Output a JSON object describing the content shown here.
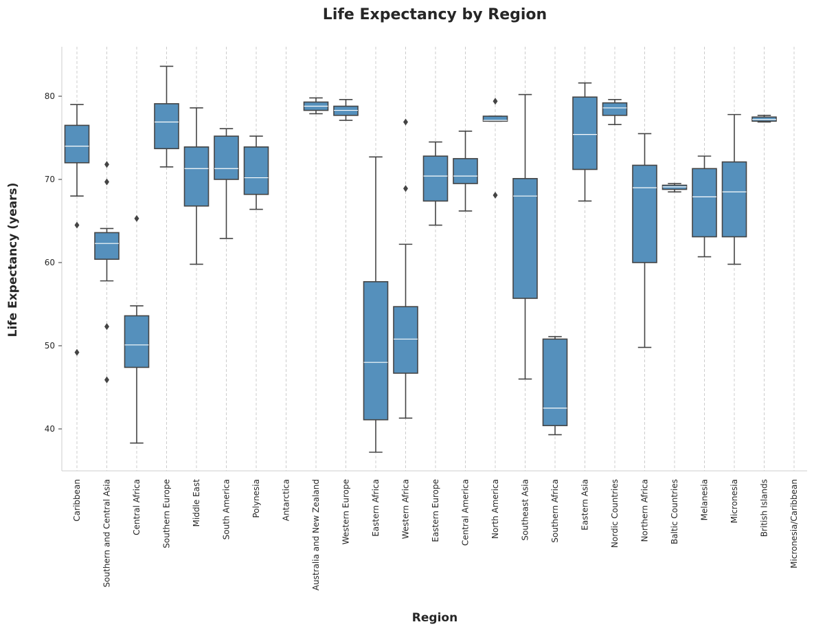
{
  "chart_data": {
    "type": "box",
    "title": "Life Expectancy by Region",
    "xlabel": "Region",
    "ylabel": "Life Expectancy (years)",
    "ylim": [
      35,
      86
    ],
    "yticks": [
      40,
      50,
      60,
      70,
      80
    ],
    "grid": "x-dashed",
    "colors": {
      "box": "#5590bc",
      "edge": "#444444",
      "median": "#ffffff",
      "grid": "#cccccc",
      "axis": "#cccccc"
    },
    "categories": [
      "Caribbean",
      "Southern and Central Asia",
      "Central Africa",
      "Southern Europe",
      "Middle East",
      "South America",
      "Polynesia",
      "Antarctica",
      "Australia and New Zealand",
      "Western Europe",
      "Eastern Africa",
      "Western Africa",
      "Eastern Europe",
      "Central America",
      "North America",
      "Southeast Asia",
      "Southern Africa",
      "Eastern Asia",
      "Nordic Countries",
      "Northern Africa",
      "Baltic Countries",
      "Melanesia",
      "Micronesia",
      "British Islands",
      "Micronesia/Caribbean"
    ],
    "boxes": [
      {
        "whislo": 68.0,
        "q1": 72.0,
        "med": 74.0,
        "q3": 76.5,
        "whishi": 79.0,
        "fliers": [
          64.5,
          49.2
        ]
      },
      {
        "whislo": 57.8,
        "q1": 60.4,
        "med": 62.3,
        "q3": 63.6,
        "whishi": 64.1,
        "fliers": [
          71.8,
          69.7,
          52.3,
          45.9
        ]
      },
      {
        "whislo": 38.3,
        "q1": 47.4,
        "med": 50.1,
        "q3": 53.6,
        "whishi": 54.8,
        "fliers": [
          65.3
        ]
      },
      {
        "whislo": 71.5,
        "q1": 73.7,
        "med": 76.9,
        "q3": 79.1,
        "whishi": 83.6,
        "fliers": []
      },
      {
        "whislo": 59.8,
        "q1": 66.8,
        "med": 71.3,
        "q3": 73.9,
        "whishi": 78.6,
        "fliers": []
      },
      {
        "whislo": 62.9,
        "q1": 70.0,
        "med": 71.3,
        "q3": 75.2,
        "whishi": 76.1,
        "fliers": []
      },
      {
        "whislo": 66.4,
        "q1": 68.2,
        "med": 70.2,
        "q3": 73.9,
        "whishi": 75.2,
        "fliers": []
      },
      null,
      {
        "whislo": 77.9,
        "q1": 78.3,
        "med": 78.8,
        "q3": 79.3,
        "whishi": 79.8,
        "fliers": []
      },
      {
        "whislo": 77.1,
        "q1": 77.7,
        "med": 78.3,
        "q3": 78.8,
        "whishi": 79.6,
        "fliers": []
      },
      {
        "whislo": 37.2,
        "q1": 41.1,
        "med": 48.0,
        "q3": 57.7,
        "whishi": 72.7,
        "fliers": []
      },
      {
        "whislo": 41.3,
        "q1": 46.7,
        "med": 50.8,
        "q3": 54.7,
        "whishi": 62.2,
        "fliers": [
          76.9,
          68.9
        ]
      },
      {
        "whislo": 64.5,
        "q1": 67.4,
        "med": 70.4,
        "q3": 72.8,
        "whishi": 74.5,
        "fliers": []
      },
      {
        "whislo": 66.2,
        "q1": 69.5,
        "med": 70.4,
        "q3": 72.5,
        "whishi": 75.8,
        "fliers": []
      },
      {
        "whislo": 77.0,
        "q1": 77.0,
        "med": 77.1,
        "q3": 77.6,
        "whishi": 77.6,
        "fliers": [
          79.4,
          68.1
        ]
      },
      {
        "whislo": 46.0,
        "q1": 55.7,
        "med": 68.0,
        "q3": 70.1,
        "whishi": 80.2,
        "fliers": []
      },
      {
        "whislo": 39.3,
        "q1": 40.4,
        "med": 42.5,
        "q3": 50.8,
        "whishi": 51.1,
        "fliers": []
      },
      {
        "whislo": 67.4,
        "q1": 71.2,
        "med": 75.4,
        "q3": 79.9,
        "whishi": 81.6,
        "fliers": []
      },
      {
        "whislo": 76.6,
        "q1": 77.7,
        "med": 78.6,
        "q3": 79.2,
        "whishi": 79.6,
        "fliers": []
      },
      {
        "whislo": 49.8,
        "q1": 60.0,
        "med": 69.0,
        "q3": 71.7,
        "whishi": 75.5,
        "fliers": []
      },
      {
        "whislo": 68.5,
        "q1": 68.8,
        "med": 69.1,
        "q3": 69.3,
        "whishi": 69.5,
        "fliers": []
      },
      {
        "whislo": 60.7,
        "q1": 63.1,
        "med": 67.9,
        "q3": 71.3,
        "whishi": 72.8,
        "fliers": []
      },
      {
        "whislo": 59.8,
        "q1": 63.1,
        "med": 68.5,
        "q3": 72.1,
        "whishi": 77.8,
        "fliers": []
      },
      {
        "whislo": 76.9,
        "q1": 77.0,
        "med": 77.2,
        "q3": 77.5,
        "whishi": 77.7,
        "fliers": []
      },
      null
    ]
  }
}
